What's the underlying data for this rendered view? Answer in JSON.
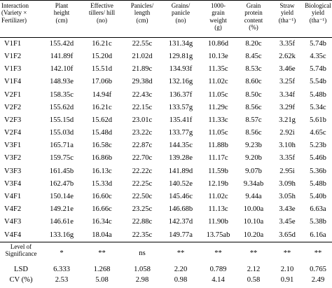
{
  "header": {
    "interaction": [
      "Interaction",
      "(Variety ×",
      "Fertilizer)"
    ],
    "plant_height": [
      "Plant",
      "height",
      "(cm)"
    ],
    "tillers": [
      "Effective",
      "tillers/ hill",
      "(no)"
    ],
    "panicle_length": [
      "Panicles/",
      "length",
      "(cm)"
    ],
    "grains": [
      "Grains/",
      "panicle",
      "(no)"
    ],
    "grain_weight": [
      "1000-",
      "grain",
      "weight",
      "(g)"
    ],
    "protein": [
      "Grain",
      "protein",
      "content",
      "(%)"
    ],
    "straw": [
      "Straw",
      "yield",
      "(tha⁻¹)"
    ],
    "bio": [
      "Biological",
      "yield",
      "(tha⁻¹)"
    ]
  },
  "rows": [
    [
      "V1F1",
      "155.42d",
      "16.21c",
      "22.55c",
      "131.34g",
      "10.86d",
      "8.20c",
      "3.35f",
      "5.74b"
    ],
    [
      "V1F2",
      "141.89f",
      "15.20d",
      "21.02d",
      "129.81g",
      "10.13e",
      "8.45c",
      "2.62k",
      "4.35c"
    ],
    [
      "V1F3",
      "142.10f",
      "15.51d",
      "21.89c",
      "134.93f",
      "11.35c",
      "8.53c",
      "3.46e",
      "5.74b"
    ],
    [
      "V1F4",
      "148.93e",
      "17.06b",
      "29.38d",
      "132.16g",
      "11.02c",
      "8.60c",
      "3.25f",
      "5.54b"
    ],
    [
      "V2F1",
      "158.35c",
      "14.94f",
      "22.43c",
      "136.37f",
      "11.05c",
      "8.50c",
      "3.34f",
      "5.48b"
    ],
    [
      "V2F2",
      "155.62d",
      "16.21c",
      "22.15c",
      "133.57g",
      "11.29c",
      "8.56c",
      "3.29f",
      "5.34c"
    ],
    [
      "V2F3",
      "155.15d",
      "15.62d",
      "23.01c",
      "135.41f",
      "11.33c",
      "8.57c",
      "3.21g",
      "5.61b"
    ],
    [
      "V2F4",
      "155.03d",
      "15.48d",
      "23.22c",
      "133.77g",
      "11.05c",
      "8.56c",
      "2.92i",
      "4.65c"
    ],
    [
      "V3F1",
      "165.71a",
      "16.58c",
      "22.87c",
      "144.35c",
      "11.88b",
      "9.23b",
      "3.10h",
      "5.23b"
    ],
    [
      "V3F2",
      "159.75c",
      "16.86b",
      "22.70c",
      "139.28e",
      "11.17c",
      "9.20b",
      "3.35f",
      "5.46b"
    ],
    [
      "V3F3",
      "161.45b",
      "16.13c",
      "22.22c",
      "141.89d",
      "11.59b",
      "9.07b",
      "2.95i",
      "5.36b"
    ],
    [
      "V3F4",
      "162.47b",
      "15.33d",
      "22.25c",
      "140.52e",
      "12.19b",
      "9.34ab",
      "3.09h",
      "5.48b"
    ],
    [
      "V4F1",
      "150.14e",
      "16.60c",
      "22.50c",
      "145.46c",
      "11.02c",
      "9.44a",
      "3.05h",
      "5.40b"
    ],
    [
      "V4F2",
      "149.21e",
      "16.66c",
      "23.25c",
      "146.68b",
      "11.13c",
      "10.00a",
      "3.43e",
      "6.63a"
    ],
    [
      "V4F3",
      "146.61e",
      "16.34c",
      "22.88c",
      "142.37d",
      "11.90b",
      "10.10a",
      "3.45e",
      "5.38b"
    ],
    [
      "V4F4",
      "133.16g",
      "18.04a",
      "22.35c",
      "149.77a",
      "13.75ab",
      "10.20a",
      "3.65d",
      "6.16a"
    ]
  ],
  "footer": {
    "significance": {
      "label": [
        "Level of",
        "Significance"
      ],
      "values": [
        "*",
        "**",
        "ns",
        "**",
        "**",
        "**",
        "**",
        "**"
      ]
    },
    "lsd": {
      "label": "LSD",
      "values": [
        "6.333",
        "1.268",
        "1.058",
        "2.20",
        "0.789",
        "2.12",
        "2.10",
        "0.765"
      ]
    },
    "cv": {
      "label": "CV (%)",
      "values": [
        "2.53",
        "5.08",
        "2.98",
        "0.98",
        "4.14",
        "0.58",
        "0.91",
        "2.49"
      ]
    }
  }
}
